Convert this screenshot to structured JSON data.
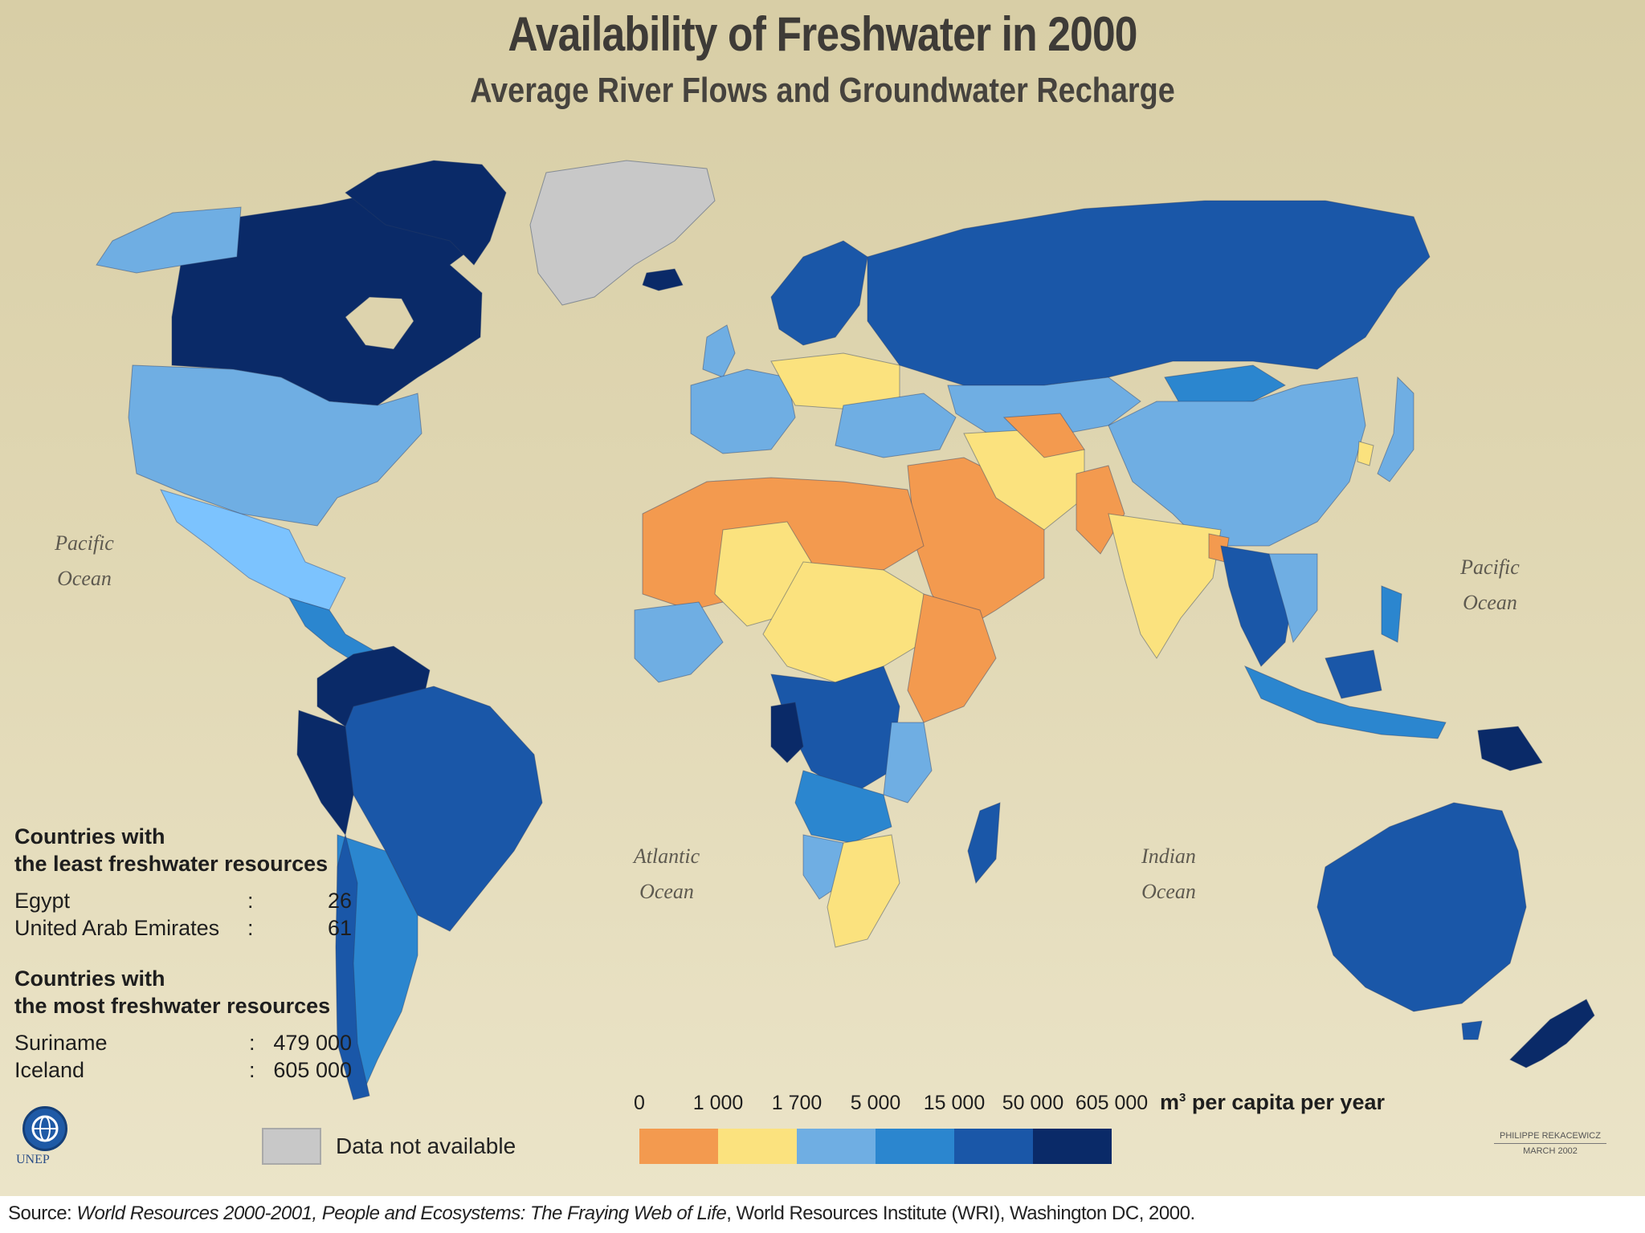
{
  "title": "Availability of Freshwater in 2000",
  "subtitle": "Average River Flows and Groundwater Recharge",
  "oceans": {
    "pacific_left": [
      "Pacific",
      "Ocean"
    ],
    "pacific_right": [
      "Pacific",
      "Ocean"
    ],
    "atlantic": [
      "Atlantic",
      "Ocean"
    ],
    "indian": [
      "Indian",
      "Ocean"
    ]
  },
  "least": {
    "heading": [
      "Countries with",
      "the least freshwater resources"
    ],
    "rows": [
      {
        "country": "Egypt",
        "sep": ":",
        "value": "26"
      },
      {
        "country": "United Arab Emirates",
        "sep": ":",
        "value": "61"
      }
    ]
  },
  "most": {
    "heading": [
      "Countries with",
      "the most freshwater resources"
    ],
    "rows": [
      {
        "country": "Suriname",
        "sep": ":",
        "value": "479 000"
      },
      {
        "country": "Iceland",
        "sep": ":",
        "value": "605 000"
      }
    ]
  },
  "legend": {
    "ticks": [
      "0",
      "1 000",
      "1 700",
      "5 000",
      "15 000",
      "50 000",
      "605 000"
    ],
    "unit_prefix": "m",
    "unit_sup": "3",
    "unit_suffix": " per capita per year",
    "colors": [
      "#f39a4f",
      "#fbe27e",
      "#6faee3",
      "#2b86cf",
      "#1a57a8",
      "#0a2a68"
    ],
    "na_label": "Data not available",
    "na_color": "#c8c8c8"
  },
  "logo_text": "UNEP",
  "credit": [
    "PHILIPPE REKACEWICZ",
    "MARCH 2002"
  ],
  "source": {
    "prefix": "Source: ",
    "work1": "World Resources 2000-2001, People and Ecosystems: The Fraying Web of Life",
    "rest": ", World Resources Institute (WRI), Washington DC, 2000."
  },
  "map_fills": {
    "lowest": "#f39a4f",
    "low": "#fbe27e",
    "medium": "#6faee3",
    "high": "#2b86cf",
    "higher": "#1a57a8",
    "highest": "#0a2a68",
    "not_available": "#c8c8c8"
  }
}
